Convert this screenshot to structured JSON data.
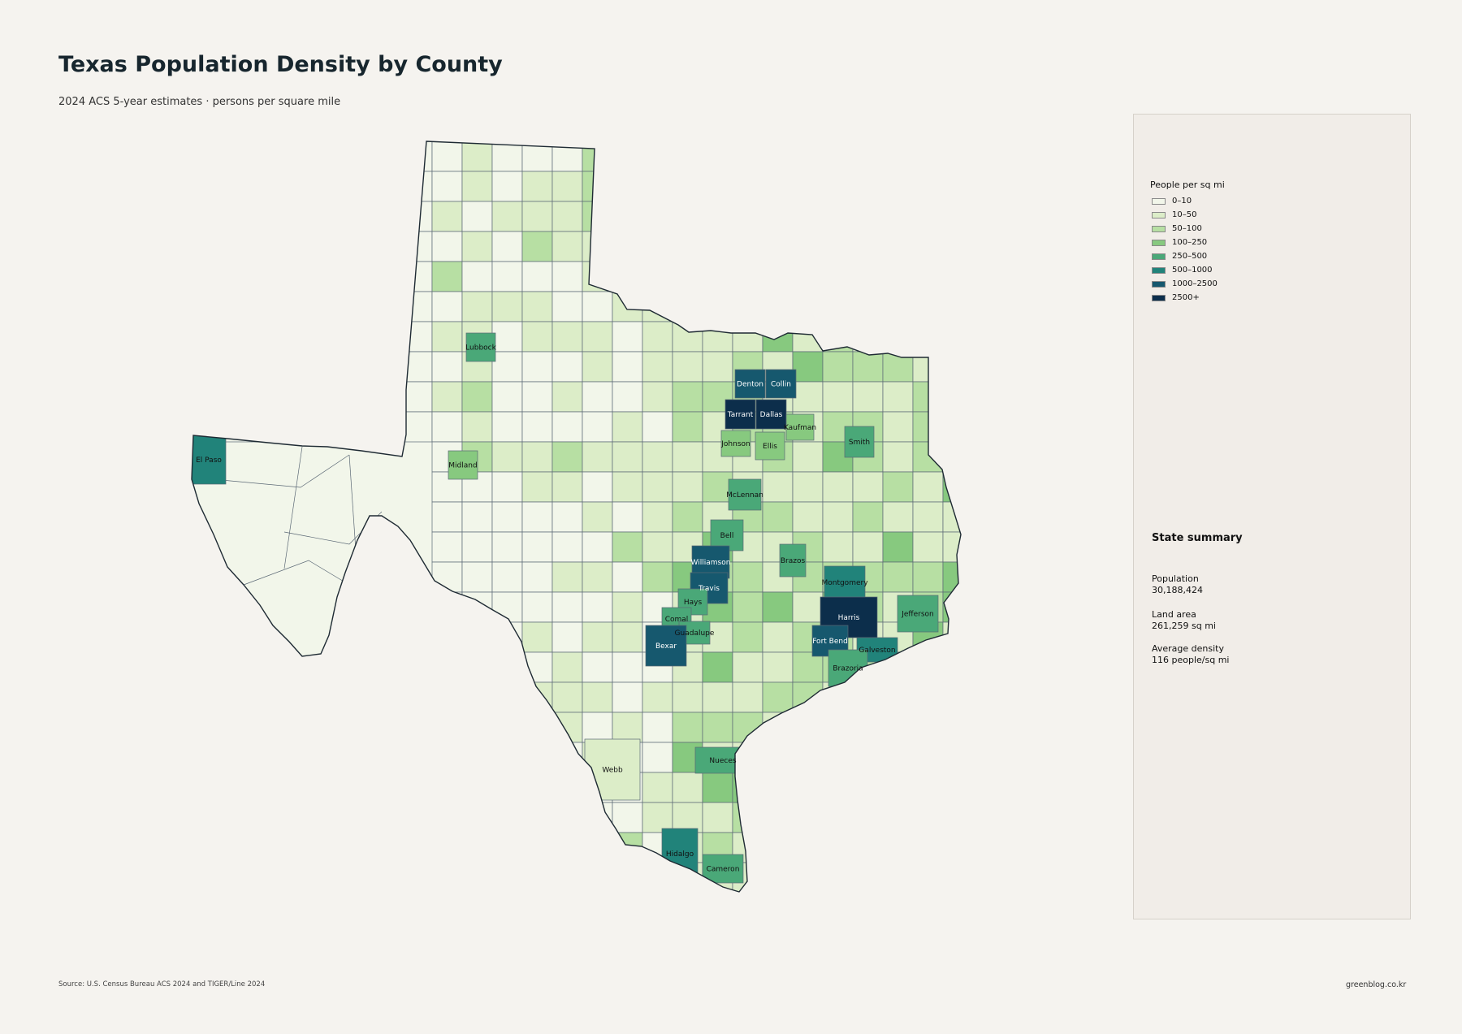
{
  "title": "Texas Population Density by County",
  "subtitle": "2024 ACS 5-year estimates · persons per square mile",
  "legend": {
    "title": "People per sq mi",
    "classes": [
      {
        "label": "0–10",
        "color": "#f2f6ea"
      },
      {
        "label": "10–50",
        "color": "#dcedc8"
      },
      {
        "label": "50–100",
        "color": "#b7dfa3"
      },
      {
        "label": "100–250",
        "color": "#87c97f"
      },
      {
        "label": "250–500",
        "color": "#4aa878"
      },
      {
        "label": "500–1000",
        "color": "#21837a"
      },
      {
        "label": "1000–2500",
        "color": "#16586e"
      },
      {
        "label": "2500+",
        "color": "#0c2e4b"
      }
    ]
  },
  "summary": {
    "title": "State summary",
    "population_label": "Population",
    "population_value": "30,188,424",
    "area_label": "Land area",
    "area_value": "261,259 sq mi",
    "density_label": "Average density",
    "density_value": "116 people/sq mi"
  },
  "county_labels": {
    "lubbock": "Lubbock",
    "el_paso": "El Paso",
    "midland": "Midland",
    "denton": "Denton",
    "collin": "Collin",
    "tarrant": "Tarrant",
    "dallas": "Dallas",
    "kaufman": "Kaufman",
    "johnson": "Johnson",
    "ellis": "Ellis",
    "smith": "Smith",
    "mclennan": "McLennan",
    "bell": "Bell",
    "williamson": "Williamson",
    "travis": "Travis",
    "hays": "Hays",
    "comal": "Comal",
    "guadalupe": "Guadalupe",
    "bexar": "Bexar",
    "brazos": "Brazos",
    "montgomery": "Montgomery",
    "harris": "Harris",
    "fort_bend": "Fort Bend",
    "galveston": "Galveston",
    "brazoria": "Brazoria",
    "jefferson": "Jefferson",
    "nueces": "Nueces",
    "webb": "Webb",
    "hidalgo": "Hidalgo",
    "cameron": "Cameron"
  },
  "source": "Source: U.S. Census Bureau ACS 2024 and TIGER/Line 2024",
  "credit": "greenblog.co.kr"
}
